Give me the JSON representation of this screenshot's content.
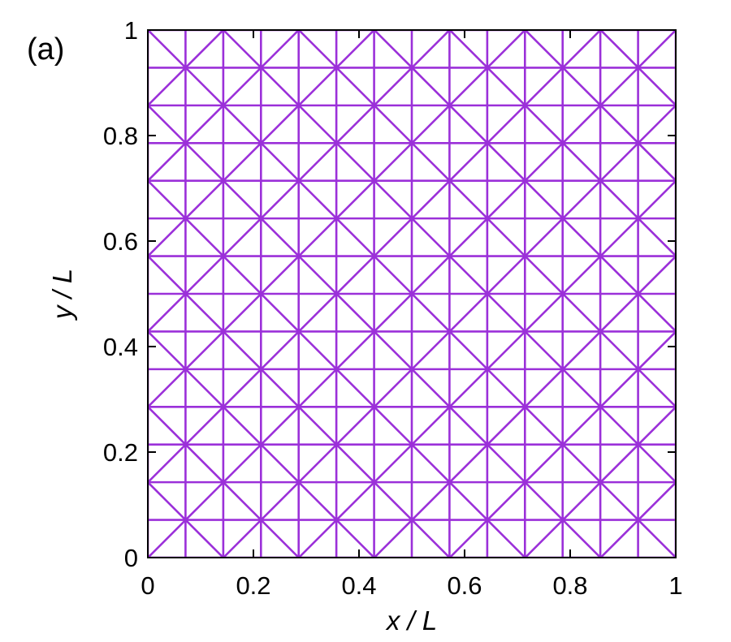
{
  "panel_label": "(a)",
  "chart_data": {
    "type": "line",
    "xlabel": "x / L",
    "ylabel": "y / L",
    "xlim": [
      0,
      1
    ],
    "ylim": [
      0,
      1
    ],
    "x_ticks": [
      0,
      0.2,
      0.4,
      0.6,
      0.8,
      1
    ],
    "y_ticks": [
      0,
      0.2,
      0.4,
      0.6,
      0.8,
      1
    ],
    "x_tick_labels": [
      "0",
      "0.2",
      "0.4",
      "0.6",
      "0.8",
      "1"
    ],
    "y_tick_labels": [
      "0",
      "0.2",
      "0.4",
      "0.6",
      "0.8",
      "1"
    ],
    "grid": false,
    "line_color": "#9b30d9",
    "mesh": {
      "vertical_lines_x": [
        0,
        0.0714,
        0.1429,
        0.2143,
        0.2857,
        0.3571,
        0.4286,
        0.5,
        0.5714,
        0.6429,
        0.7143,
        0.7857,
        0.8571,
        0.9286,
        1
      ],
      "horizontal_lines_y": [
        0,
        0.0714,
        0.1429,
        0.2143,
        0.2857,
        0.3571,
        0.4286,
        0.5,
        0.5714,
        0.6429,
        0.7143,
        0.7857,
        0.8571,
        0.9286,
        1
      ],
      "diagonal_spacing": 0.1429,
      "diagonal_directions": [
        "x + y = const",
        "x - y = const"
      ]
    }
  }
}
